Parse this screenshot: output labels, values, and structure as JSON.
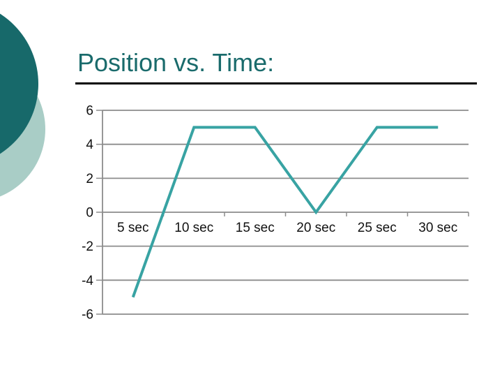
{
  "slide": {
    "title": "Position vs. Time:",
    "colors": {
      "background": "#ffffff",
      "title": "#1a6b6c",
      "underline": "#000000",
      "circle_dark": "#17696a",
      "circle_light": "#a9cdc6"
    }
  },
  "chart_data": {
    "type": "line",
    "categories": [
      "5 sec",
      "10 sec",
      "15 sec",
      "20 sec",
      "25 sec",
      "30 sec"
    ],
    "values": [
      -5,
      5,
      5,
      0,
      5,
      5
    ],
    "title": "",
    "xlabel": "",
    "ylabel": "",
    "ylim": [
      -6,
      6
    ],
    "yticks": [
      6,
      4,
      2,
      0,
      -2,
      -4,
      -6
    ],
    "grid": true,
    "legend": "none",
    "colors": {
      "line": "#38a3a3",
      "gridline": "#8c8c8c",
      "axis": "#8c8c8c",
      "tick_label": "#111111"
    }
  }
}
